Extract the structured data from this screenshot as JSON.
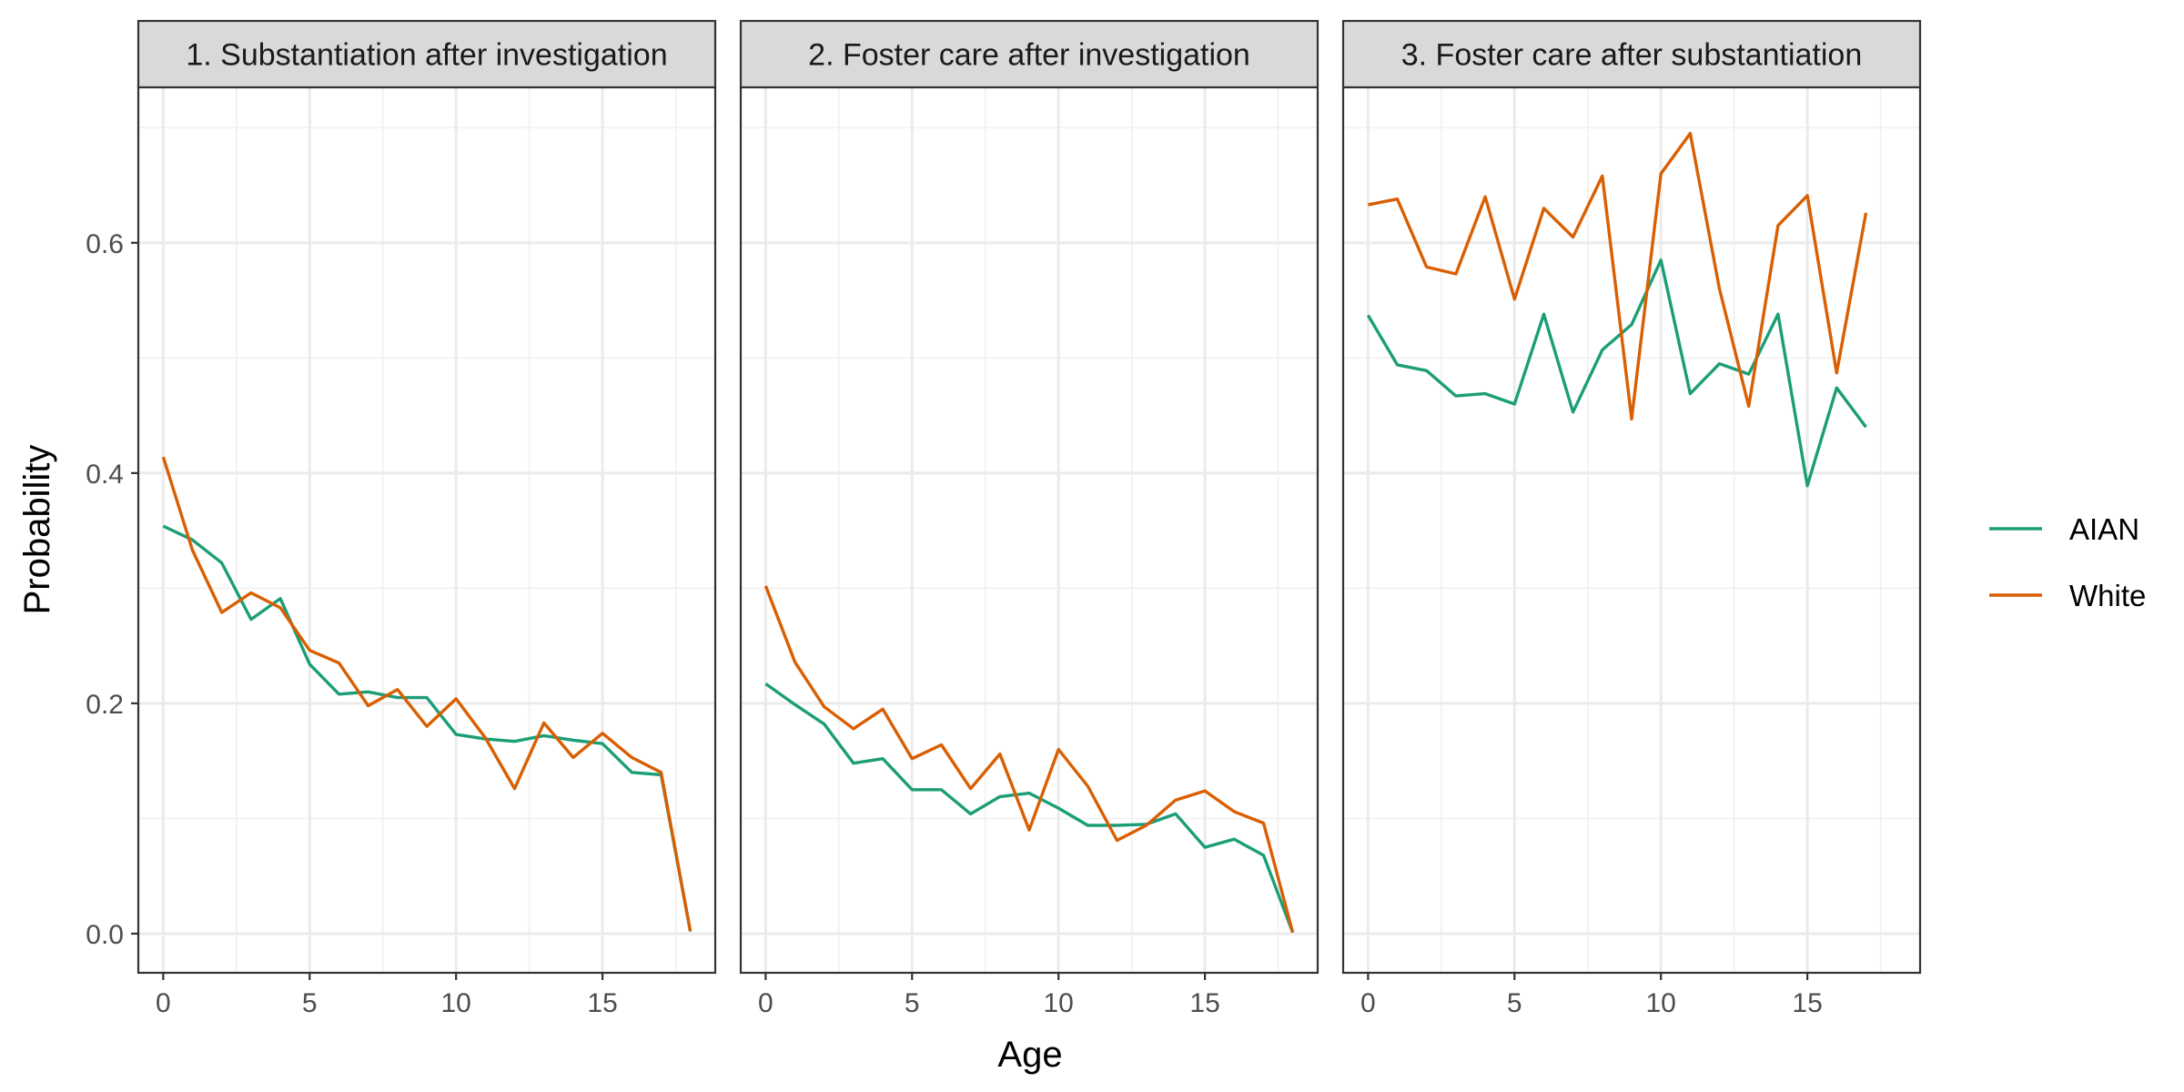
{
  "chart_data": {
    "type": "line",
    "xlabel": "Age",
    "ylabel": "Probability",
    "ylim": [
      -0.034,
      0.735
    ],
    "y_ticks": [
      0.0,
      0.2,
      0.4,
      0.6
    ],
    "y_tick_labels": [
      "0.0",
      "0.2",
      "0.4",
      "0.6"
    ],
    "x_ticks": [
      0,
      5,
      10,
      15
    ],
    "x_tick_labels": [
      "0",
      "5",
      "10",
      "15"
    ],
    "xlim": [
      -0.85,
      18.85
    ],
    "grid": true,
    "legend_position": "right",
    "series_colors": {
      "AIAN": "#1b9e77",
      "White": "#d95f02"
    },
    "legend": [
      "AIAN",
      "White"
    ],
    "panels": [
      {
        "title": "1. Substantiation after investigation",
        "x": [
          0,
          1,
          2,
          3,
          4,
          5,
          6,
          7,
          8,
          9,
          10,
          11,
          12,
          13,
          14,
          15,
          16,
          17,
          18
        ],
        "series": [
          {
            "name": "AIAN",
            "values": [
              0.354,
              0.342,
              0.322,
              0.273,
              0.291,
              0.234,
              0.208,
              0.21,
              0.205,
              0.205,
              0.173,
              0.169,
              0.167,
              0.172,
              0.168,
              0.165,
              0.14,
              0.138,
              0.002
            ]
          },
          {
            "name": "White",
            "values": [
              0.414,
              0.333,
              0.279,
              0.296,
              0.283,
              0.246,
              0.235,
              0.198,
              0.212,
              0.18,
              0.204,
              0.17,
              0.126,
              0.183,
              0.153,
              0.174,
              0.153,
              0.14,
              0.002
            ]
          }
        ]
      },
      {
        "title": "2. Foster care after investigation",
        "x": [
          0,
          1,
          2,
          3,
          4,
          5,
          6,
          7,
          8,
          9,
          10,
          11,
          12,
          13,
          14,
          15,
          16,
          17,
          18
        ],
        "series": [
          {
            "name": "AIAN",
            "values": [
              0.217,
              0.199,
              0.182,
              0.148,
              0.152,
              0.125,
              0.125,
              0.104,
              0.119,
              0.122,
              0.109,
              0.094,
              0.094,
              0.095,
              0.104,
              0.075,
              0.082,
              0.068,
              0.001
            ]
          },
          {
            "name": "White",
            "values": [
              0.302,
              0.236,
              0.197,
              0.178,
              0.195,
              0.152,
              0.164,
              0.126,
              0.156,
              0.09,
              0.16,
              0.128,
              0.081,
              0.094,
              0.116,
              0.124,
              0.106,
              0.096,
              0.001
            ]
          }
        ]
      },
      {
        "title": "3. Foster care after substantiation",
        "x": [
          0,
          1,
          2,
          3,
          4,
          5,
          6,
          7,
          8,
          9,
          10,
          11,
          12,
          13,
          14,
          15,
          16,
          17
        ],
        "series": [
          {
            "name": "AIAN",
            "values": [
              0.537,
              0.494,
              0.489,
              0.467,
              0.469,
              0.46,
              0.538,
              0.453,
              0.507,
              0.529,
              0.585,
              0.469,
              0.495,
              0.486,
              0.538,
              0.389,
              0.474,
              0.44
            ]
          },
          {
            "name": "White",
            "values": [
              0.633,
              0.638,
              0.579,
              0.573,
              0.64,
              0.551,
              0.63,
              0.605,
              0.658,
              0.447,
              0.66,
              0.695,
              0.56,
              0.458,
              0.615,
              0.641,
              0.487,
              0.626
            ]
          }
        ]
      }
    ]
  }
}
